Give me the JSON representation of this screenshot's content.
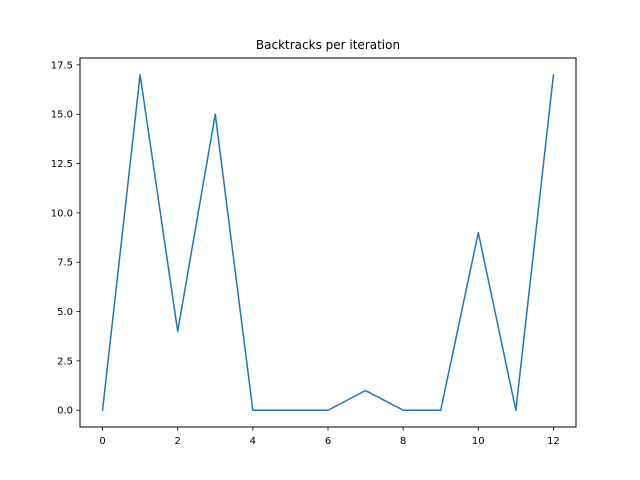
{
  "chart_data": {
    "type": "line",
    "title": "Backtracks per iteration",
    "xlabel": "",
    "ylabel": "",
    "x": [
      0,
      1,
      2,
      3,
      4,
      5,
      6,
      7,
      8,
      9,
      10,
      11,
      12
    ],
    "series": [
      {
        "values": [
          0,
          17,
          4,
          15,
          0,
          0,
          0,
          1,
          0,
          0,
          9,
          0,
          17
        ]
      }
    ],
    "xlim": [
      -0.6,
      12.6
    ],
    "ylim": [
      -0.85,
      17.85
    ],
    "x_ticks": [
      0,
      2,
      4,
      6,
      8,
      10,
      12
    ],
    "x_tick_labels": [
      "0",
      "2",
      "4",
      "6",
      "8",
      "10",
      "12"
    ],
    "y_ticks": [
      0,
      2.5,
      5,
      7.5,
      10,
      12.5,
      15,
      17.5
    ],
    "y_tick_labels": [
      "0.0",
      "2.5",
      "5.0",
      "7.5",
      "10.0",
      "12.5",
      "15.0",
      "17.5"
    ],
    "grid": false,
    "line_color": "#1f77b4"
  }
}
